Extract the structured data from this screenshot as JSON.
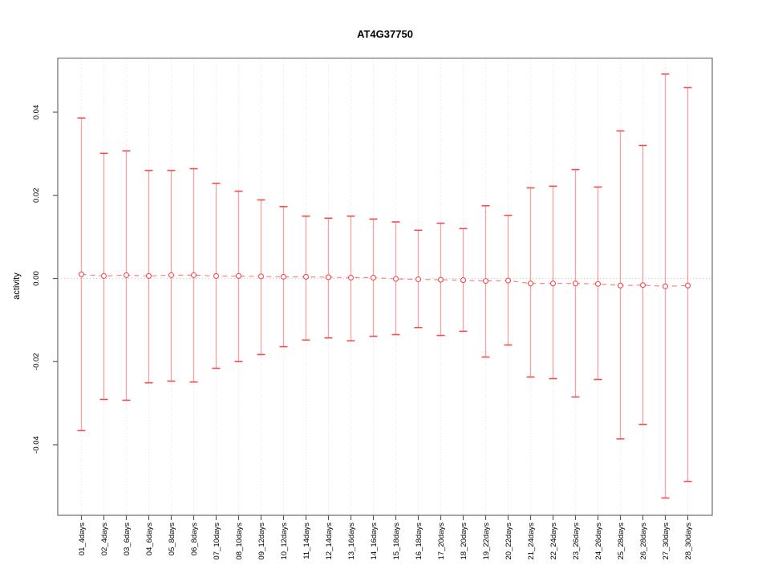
{
  "figure": {
    "title": "AT4G37750",
    "ylabel": "activity",
    "xlabel": ""
  },
  "chart_data": {
    "type": "scatter",
    "subtype": "errorbar-plot",
    "title": "AT4G37750",
    "xlabel": "",
    "ylabel": "activity",
    "legend": "none",
    "grid": "vertical-dotted-per-category, dotted-zero-line",
    "ylim": [
      -0.057,
      0.053
    ],
    "yticks": {
      "values": [
        0.04,
        0.02,
        0.0,
        -0.02,
        -0.04
      ],
      "labels": [
        "0.04",
        "0.02",
        "0.00",
        "-0.02",
        "-0.04"
      ]
    },
    "categories": [
      "01_4days",
      "02_4days",
      "03_6days",
      "04_6days",
      "05_8days",
      "06_8days",
      "07_10days",
      "08_10days",
      "09_12days",
      "10_12days",
      "11_14days",
      "12_14days",
      "13_16days",
      "14_16days",
      "15_18days",
      "16_18days",
      "17_20days",
      "18_20days",
      "19_22days",
      "20_22days",
      "21_24days",
      "22_24days",
      "23_26days",
      "24_26days",
      "25_28days",
      "26_28days",
      "27_30days",
      "28_30days"
    ],
    "series": [
      {
        "name": "center",
        "values": [
          0.001,
          0.0006,
          0.0008,
          0.0006,
          0.0008,
          0.0008,
          0.0006,
          0.0006,
          0.0005,
          0.0004,
          0.0004,
          0.0003,
          0.0002,
          0.0002,
          -0.0001,
          -0.0002,
          -0.0003,
          -0.0004,
          -0.0006,
          -0.0005,
          -0.0012,
          -0.0012,
          -0.0012,
          -0.0013,
          -0.0017,
          -0.0016,
          -0.0019,
          -0.0017
        ]
      },
      {
        "name": "upper",
        "values": [
          0.0386,
          0.0301,
          0.0307,
          0.026,
          0.026,
          0.0264,
          0.0229,
          0.021,
          0.0189,
          0.0173,
          0.015,
          0.0145,
          0.015,
          0.0143,
          0.0136,
          0.0116,
          0.0133,
          0.012,
          0.0175,
          0.0152,
          0.0218,
          0.0222,
          0.0262,
          0.022,
          0.0355,
          0.032,
          0.0492,
          0.0459
        ]
      },
      {
        "name": "lower",
        "values": [
          -0.0366,
          -0.0291,
          -0.0293,
          -0.0251,
          -0.0247,
          -0.0249,
          -0.0216,
          -0.02,
          -0.0183,
          -0.0164,
          -0.0148,
          -0.0143,
          -0.015,
          -0.0139,
          -0.0135,
          -0.0118,
          -0.0137,
          -0.0127,
          -0.0189,
          -0.016,
          -0.0237,
          -0.0241,
          -0.0285,
          -0.0243,
          -0.0386,
          -0.0351,
          -0.0528,
          -0.0488
        ]
      }
    ],
    "colors": {
      "cap": "#f34c4c",
      "stem": "#f9a0a0",
      "dash_line": "#f57d7d",
      "point_stroke": "#f34c4c",
      "point_fill": "#ffffff",
      "grid": "#dcdcdc",
      "zero_line": "#c9c9c9",
      "box": "#7a7a7a",
      "tick": "#5a5a5a",
      "text": "#000000"
    }
  }
}
